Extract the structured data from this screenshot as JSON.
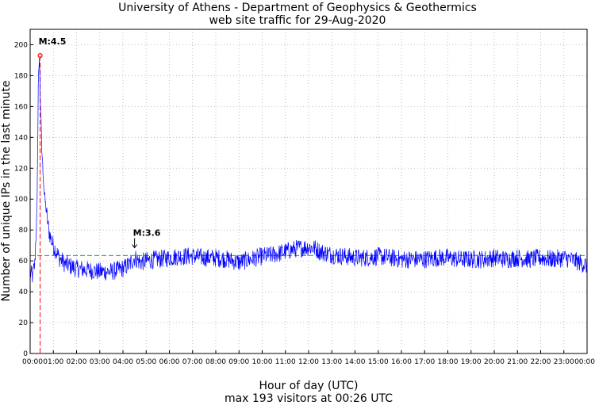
{
  "chart_data": {
    "type": "line",
    "title": "University of Athens - Department of Geophysics & Geothermics",
    "subtitle": "web site traffic for 29-Aug-2020",
    "xlabel": "Hour of day (UTC)",
    "ylabel": "Number of unique IPs in the last minute",
    "footer": "max 193 visitors at 00:26 UTC",
    "x_unit": "hour (UTC)",
    "xlim": [
      0,
      24
    ],
    "ylim": [
      0,
      210
    ],
    "grid": true,
    "x_ticks": [
      "00:00",
      "01:00",
      "02:00",
      "03:00",
      "04:00",
      "05:00",
      "06:00",
      "07:00",
      "08:00",
      "09:00",
      "10:00",
      "11:00",
      "12:00",
      "13:00",
      "14:00",
      "15:00",
      "16:00",
      "17:00",
      "18:00",
      "19:00",
      "20:00",
      "21:00",
      "22:00",
      "23:00",
      "00:00"
    ],
    "y_ticks": [
      0,
      20,
      40,
      60,
      80,
      100,
      120,
      140,
      160,
      180,
      200
    ],
    "series": [
      {
        "color": "#0000ff",
        "x": [
          0.0,
          0.1,
          0.2,
          0.3,
          0.35,
          0.4,
          0.43,
          0.47,
          0.5,
          0.55,
          0.6,
          0.7,
          0.8,
          0.9,
          1.0,
          1.25,
          1.5,
          2.0,
          2.5,
          3.0,
          3.5,
          4.0,
          4.3,
          4.5,
          4.75,
          5.0,
          5.5,
          6.0,
          6.5,
          7.0,
          7.5,
          8.0,
          8.5,
          9.0,
          9.5,
          10.0,
          10.5,
          11.0,
          11.5,
          12.0,
          12.3,
          12.5,
          13.0,
          13.5,
          14.0,
          14.5,
          15.0,
          15.5,
          16.0,
          16.5,
          17.0,
          17.5,
          18.0,
          18.5,
          19.0,
          19.5,
          20.0,
          20.5,
          21.0,
          21.5,
          22.0,
          22.5,
          23.0,
          23.5,
          24.0
        ],
        "y": [
          52,
          50,
          58,
          95,
          175,
          193,
          170,
          150,
          132,
          120,
          105,
          92,
          80,
          74,
          70,
          62,
          58,
          55,
          54,
          53,
          53,
          55,
          58,
          62,
          59,
          60,
          61,
          62,
          63,
          63,
          62,
          62,
          61,
          59,
          61,
          63,
          64,
          66,
          68,
          69,
          68,
          66,
          64,
          63,
          62,
          62,
          63,
          62,
          61,
          61,
          61,
          62,
          62,
          61,
          61,
          61,
          62,
          61,
          62,
          61,
          62,
          61,
          62,
          60,
          57
        ]
      }
    ],
    "reference_line": {
      "y": 63.5,
      "color": "#00cc00",
      "style": "dashed"
    },
    "event_line": {
      "x": 0.43,
      "color": "#ff0000",
      "style": "dashed"
    },
    "max_marker": {
      "x": 0.43,
      "y": 193,
      "color": "#ff0000"
    },
    "annotations": [
      {
        "text": "M:4.5",
        "x": 0.43,
        "y": 193
      },
      {
        "text": "M:3.6",
        "x": 4.5,
        "y": 68,
        "arrow": true
      }
    ]
  }
}
